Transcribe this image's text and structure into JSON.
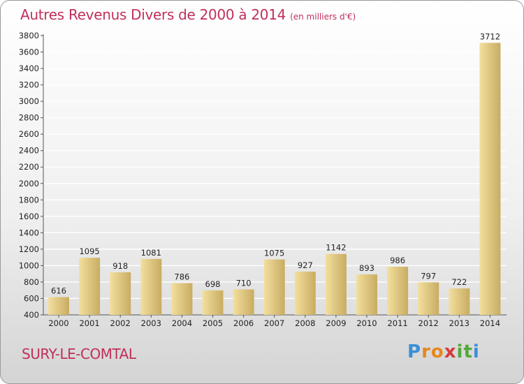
{
  "header": {
    "title": "Autres Revenus Divers de 2000 à 2014",
    "subtitle": "(en milliers d'€)"
  },
  "footer": {
    "town": "SURY-LE-COMTAL",
    "logo_letters": [
      "P",
      "r",
      "o",
      "x",
      "i",
      "t",
      "i"
    ]
  },
  "colors": {
    "title": "#c0305a",
    "bar_light": "#f3df9e",
    "bar_dark": "#c8ac62",
    "grid": "#ffffff",
    "logo": [
      "#3a8fd8",
      "#e8871e",
      "#e8871e",
      "#d63a3a",
      "#52a83c",
      "#52a83c",
      "#3a8fd8"
    ]
  },
  "chart_data": {
    "type": "bar",
    "categories": [
      "2000",
      "2001",
      "2002",
      "2003",
      "2004",
      "2005",
      "2006",
      "2007",
      "2008",
      "2009",
      "2010",
      "2011",
      "2012",
      "2013",
      "2014"
    ],
    "values": [
      616,
      1095,
      918,
      1081,
      786,
      698,
      710,
      1075,
      927,
      1142,
      893,
      986,
      797,
      722,
      3712
    ],
    "ylim": [
      400,
      3800
    ],
    "yticks": [
      400,
      600,
      800,
      1000,
      1200,
      1400,
      1600,
      1800,
      2000,
      2200,
      2400,
      2600,
      2800,
      3000,
      3200,
      3400,
      3600,
      3800
    ],
    "grid": true,
    "data_labels": true
  }
}
